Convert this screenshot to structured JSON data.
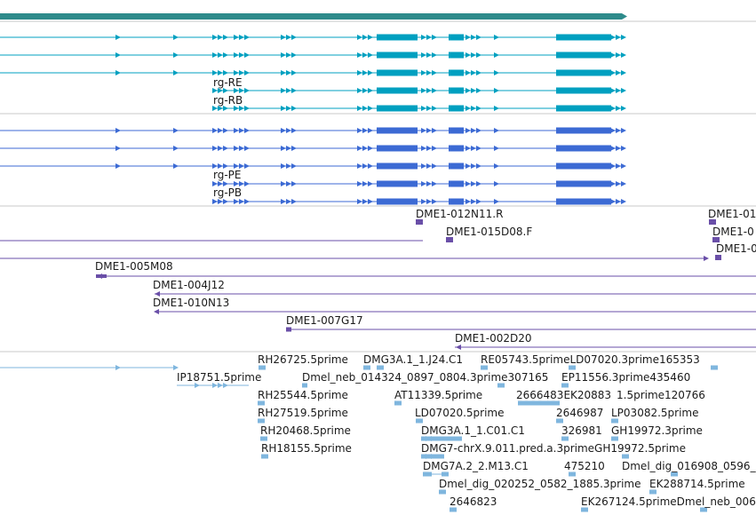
{
  "colors": {
    "gene": "#2e8b8b",
    "transcript": "#00a0c0",
    "protein": "#3c6ad4",
    "clone": "#6a4fa8",
    "est": "#7fb6de",
    "separator": "#c9c9c9"
  },
  "gene_track": {
    "transcript_labels": [
      "rg-RE",
      "rg-RB"
    ]
  },
  "protein_track": {
    "protein_labels": [
      "rg-PE",
      "rg-PB"
    ]
  },
  "clone_track": {
    "labels": [
      "DME1-012N11.R",
      "DME1-01",
      "DME1-015D08.F",
      "DME1-0",
      "DME1-0",
      "DME1-005M08",
      "DME1-004J12",
      "DME1-010N13",
      "DME1-007G17",
      "DME1-002D20"
    ]
  },
  "est_track": {
    "labels": [
      "RH26725.5prime",
      "DMG3A.1_1.J24.C1",
      "RE05743.5primeLD07020.3prime165353",
      "IP18751.5prime",
      "Dmel_neb_014324_0897_0804.3prime307165",
      "EP11556.3prime435460",
      "RH25544.5prime",
      "AT11339.5prime",
      "2666483EK20883",
      "1.5prime120766",
      "RH27519.5prime",
      "LD07020.5prime",
      "2646987",
      "LP03082.5prime",
      "RH20468.5prime",
      "DMG3A.1_1.C01.C1",
      "326981",
      "GH19972.3prime",
      "RH18155.5prime",
      "DMG7-chrX.9.011.pred.a.3primeGH19972.5prime",
      "DMG7A.2_2.M13.C1",
      "475210",
      "Dmel_dig_016908_0596_",
      "Dmel_dig_020252_0582_1885.3prime",
      "EK288714.5prime",
      "2646823",
      "EK267124.5primeDmel_neb_006"
    ]
  }
}
